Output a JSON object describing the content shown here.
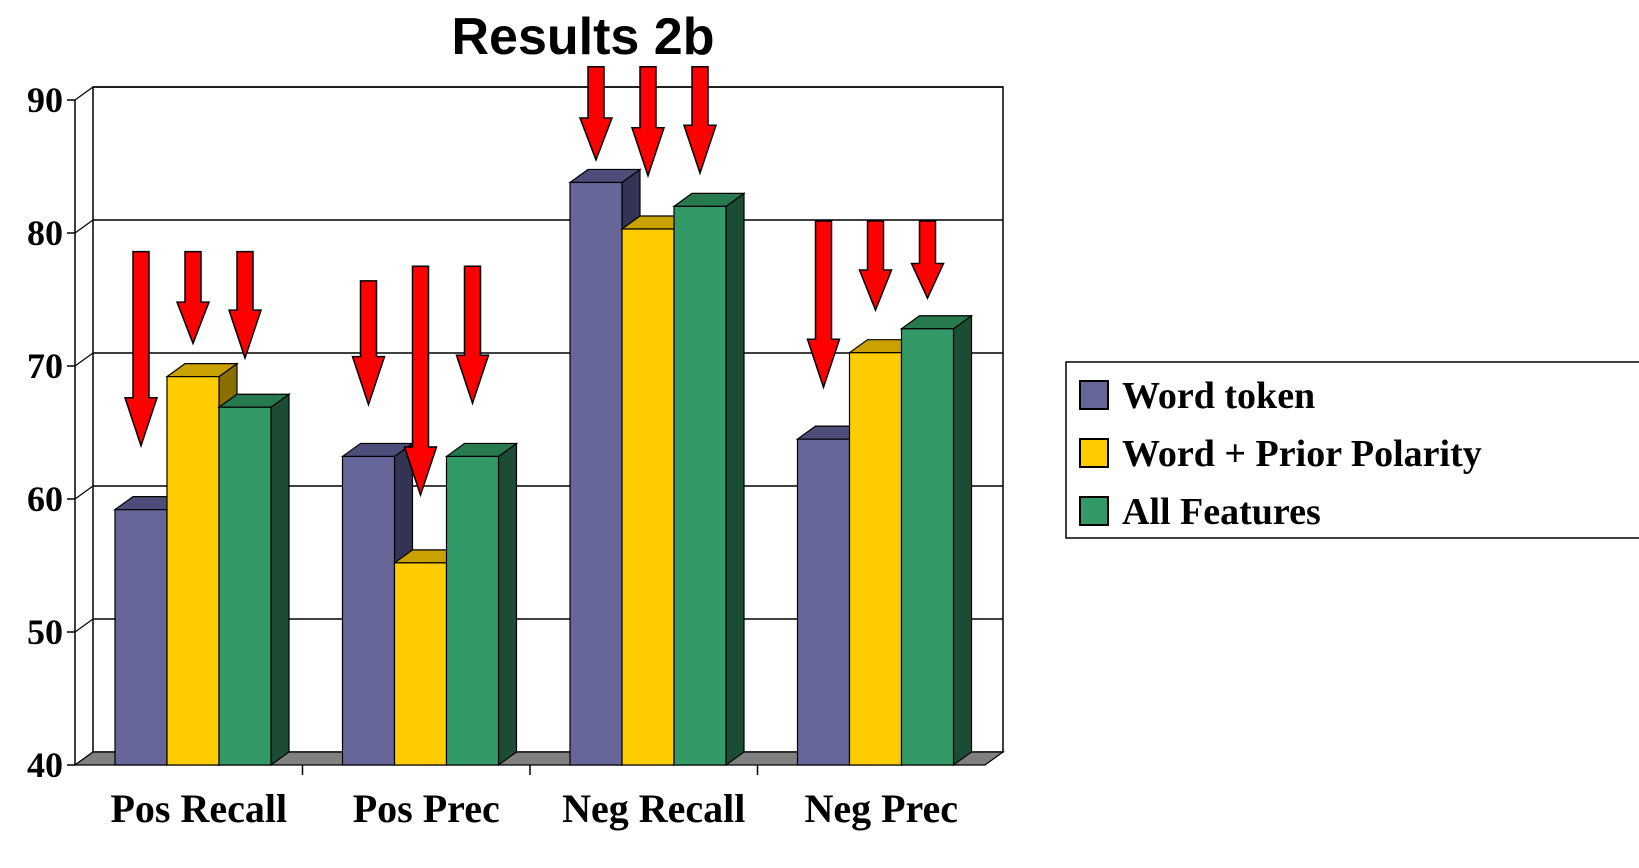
{
  "chart_data": {
    "type": "bar",
    "title": "Results 2b",
    "categories": [
      "Pos Recall",
      "Pos Prec",
      "Neg Recall",
      "Neg Prec"
    ],
    "series": [
      {
        "name": "Word token",
        "values": [
          59.2,
          63.2,
          83.8,
          64.5
        ],
        "color": "#666699",
        "side": "#333355",
        "topc": "#4d4d7a"
      },
      {
        "name": "Word + Prior Polarity",
        "values": [
          69.2,
          55.2,
          80.3,
          71.0
        ],
        "color": "#ffcc00",
        "side": "#8a6e00",
        "topc": "#c9a100"
      },
      {
        "name": "All Features",
        "values": [
          66.9,
          63.2,
          82.0,
          72.8
        ],
        "color": "#339966",
        "side": "#1a4d33",
        "topc": "#267a4d"
      }
    ],
    "ylim": [
      40,
      90
    ],
    "yticks": [
      40,
      50,
      60,
      70,
      80,
      90
    ],
    "grid": true,
    "legend_position": "right",
    "annotations": {
      "arrows": [
        {
          "category": "Pos Recall",
          "series": "Word token",
          "from": 78.6,
          "to": 64.0
        },
        {
          "category": "Pos Recall",
          "series": "Word + Prior Polarity",
          "from": 78.6,
          "to": 71.7
        },
        {
          "category": "Pos Recall",
          "series": "All Features",
          "from": 78.6,
          "to": 70.6
        },
        {
          "category": "Pos Prec",
          "series": "Word token",
          "from": 76.4,
          "to": 67.1
        },
        {
          "category": "Pos Prec",
          "series": "Word + Prior Polarity",
          "from": 77.5,
          "to": 60.3
        },
        {
          "category": "Pos Prec",
          "series": "All Features",
          "from": 77.5,
          "to": 67.2
        },
        {
          "category": "Neg Recall",
          "series": "Word token",
          "from": 92.5,
          "to": 85.5
        },
        {
          "category": "Neg Recall",
          "series": "Word + Prior Polarity",
          "from": 92.5,
          "to": 84.3
        },
        {
          "category": "Neg Recall",
          "series": "All Features",
          "from": 92.5,
          "to": 84.5
        },
        {
          "category": "Neg Prec",
          "series": "Word token",
          "from": 80.9,
          "to": 68.4
        },
        {
          "category": "Neg Prec",
          "series": "Word + Prior Polarity",
          "from": 80.9,
          "to": 74.2
        },
        {
          "category": "Neg Prec",
          "series": "All Features",
          "from": 80.9,
          "to": 75.1
        }
      ],
      "arrow_color": "#ff0000"
    }
  }
}
